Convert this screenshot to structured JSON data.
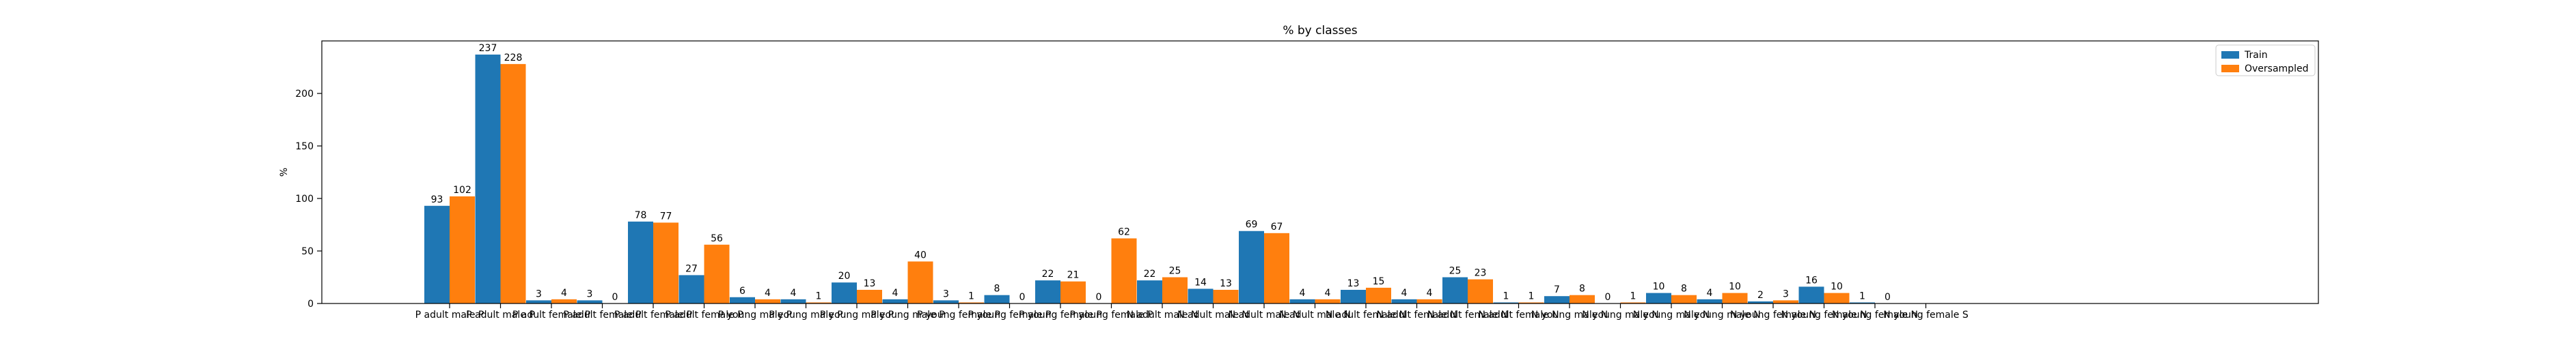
{
  "chart_data": {
    "type": "bar",
    "title": "% by classes",
    "xlabel": "",
    "ylabel": "%",
    "ylim": [
      0,
      250
    ],
    "yticks": [
      0,
      50,
      100,
      150,
      200
    ],
    "grid": false,
    "legend_position": "top-right",
    "categories": [
      "P adult male P",
      "P adult male P",
      "P adult female P",
      "P adult female P",
      "P adult female P",
      "P adult female P",
      "P young male P",
      "P young male P",
      "P young male P",
      "P young male P",
      "P young female P",
      "P young female P",
      "P young female P",
      "P young female P",
      "N adult male N",
      "N adult male N",
      "N adult male N",
      "N adult male N",
      "N adult female N",
      "N adult female N",
      "N adult female N",
      "N adult female N",
      "N young male N",
      "N young male N",
      "N young male N",
      "N young male N",
      "N young female N",
      "N young female N",
      "N young female N",
      "N young female S"
    ],
    "series": [
      {
        "name": "Train",
        "color": "#1f77b4",
        "values": [
          93,
          237,
          3,
          3,
          78,
          27,
          6,
          4,
          20,
          4,
          3,
          8,
          22,
          0,
          22,
          14,
          69,
          4,
          13,
          4,
          25,
          1,
          7,
          0,
          10,
          4,
          2,
          16,
          1,
          null
        ]
      },
      {
        "name": "Oversampled",
        "color": "#ff7f0e",
        "values": [
          102,
          228,
          4,
          0,
          77,
          56,
          4,
          1,
          13,
          40,
          1,
          0,
          21,
          62,
          25,
          13,
          67,
          4,
          15,
          4,
          23,
          1,
          8,
          1,
          8,
          10,
          3,
          10,
          0,
          null
        ]
      }
    ]
  }
}
